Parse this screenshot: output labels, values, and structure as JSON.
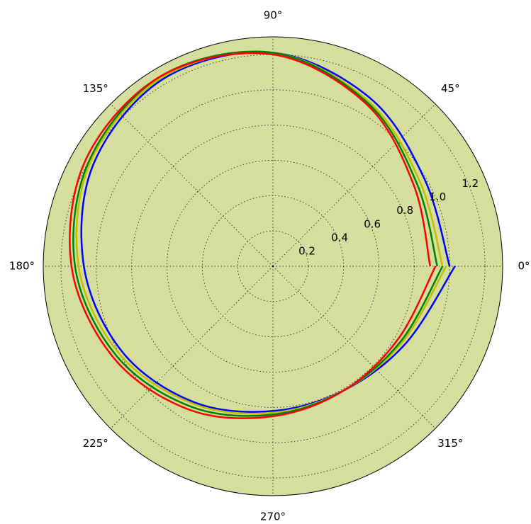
{
  "chart_data": {
    "type": "line",
    "projection": "polar",
    "background_color": "#d5de9c",
    "grid": true,
    "angle_ticks": [
      "0°",
      "45°",
      "90°",
      "135°",
      "180°",
      "225°",
      "270°",
      "315°"
    ],
    "angle_tick_values": [
      0,
      45,
      90,
      135,
      180,
      225,
      270,
      315
    ],
    "radial_ticks": [
      "0.2",
      "0.4",
      "0.6",
      "0.8",
      "1.0",
      "1.2"
    ],
    "radial_tick_values": [
      0.2,
      0.4,
      0.6,
      0.8,
      1.0,
      1.2
    ],
    "rlim": [
      0,
      1.3
    ],
    "theta_range_deg": [
      0,
      360
    ],
    "series": [
      {
        "color": "#0000ff",
        "theta_deg": [
          0,
          30,
          60,
          90,
          120,
          150,
          180,
          210,
          240,
          270,
          300,
          330,
          360
        ],
        "r": [
          1.0,
          0.99,
          1.1,
          1.21,
          1.23,
          1.17,
          1.07,
          0.98,
          0.89,
          0.82,
          0.81,
          0.87,
          1.03
        ]
      },
      {
        "color": "#bfbf00",
        "theta_deg": [
          0,
          30,
          60,
          90,
          120,
          150,
          180,
          210,
          240,
          270,
          300,
          330,
          360
        ],
        "r": [
          0.96,
          0.96,
          1.08,
          1.21,
          1.24,
          1.19,
          1.1,
          1.0,
          0.9,
          0.83,
          0.81,
          0.85,
          0.98
        ]
      },
      {
        "color": "#008000",
        "theta_deg": [
          0,
          30,
          60,
          90,
          120,
          150,
          180,
          210,
          240,
          270,
          300,
          330,
          360
        ],
        "r": [
          0.93,
          0.94,
          1.07,
          1.21,
          1.25,
          1.2,
          1.12,
          1.02,
          0.92,
          0.84,
          0.81,
          0.84,
          0.96
        ]
      },
      {
        "color": "#ff0000",
        "theta_deg": [
          0,
          30,
          60,
          90,
          120,
          150,
          180,
          210,
          240,
          270,
          300,
          330,
          360
        ],
        "r": [
          0.89,
          0.92,
          1.06,
          1.2,
          1.25,
          1.22,
          1.14,
          1.04,
          0.94,
          0.85,
          0.81,
          0.82,
          0.92
        ]
      }
    ]
  }
}
